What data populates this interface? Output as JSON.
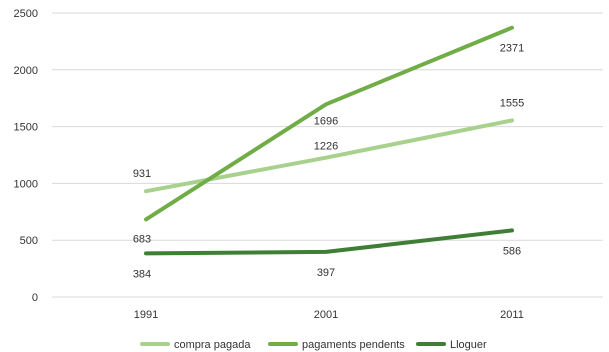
{
  "chart_data": {
    "type": "line",
    "categories": [
      "1991",
      "2001",
      "2011"
    ],
    "ylim": [
      0,
      2500
    ],
    "yticks": [
      0,
      500,
      1000,
      1500,
      2000,
      2500
    ],
    "grid": true,
    "legend_position": "bottom",
    "series": [
      {
        "name": "compra pagada",
        "values": [
          931,
          1226,
          1555
        ],
        "color": "#a9d18e"
      },
      {
        "name": "pagaments pendents",
        "values": [
          683,
          1696,
          2371
        ],
        "color": "#70ad47"
      },
      {
        "name": "Lloguer",
        "values": [
          384,
          397,
          586
        ],
        "color": "#3f7f35"
      }
    ],
    "data_labels": [
      {
        "series": 0,
        "point": 0,
        "text": "931"
      },
      {
        "series": 0,
        "point": 1,
        "text": "1226"
      },
      {
        "series": 0,
        "point": 2,
        "text": "1555"
      },
      {
        "series": 1,
        "point": 0,
        "text": "683"
      },
      {
        "series": 1,
        "point": 1,
        "text": "1696"
      },
      {
        "series": 1,
        "point": 2,
        "text": "2371"
      },
      {
        "series": 2,
        "point": 0,
        "text": "384"
      },
      {
        "series": 2,
        "point": 1,
        "text": "397"
      },
      {
        "series": 2,
        "point": 2,
        "text": "586"
      }
    ]
  }
}
